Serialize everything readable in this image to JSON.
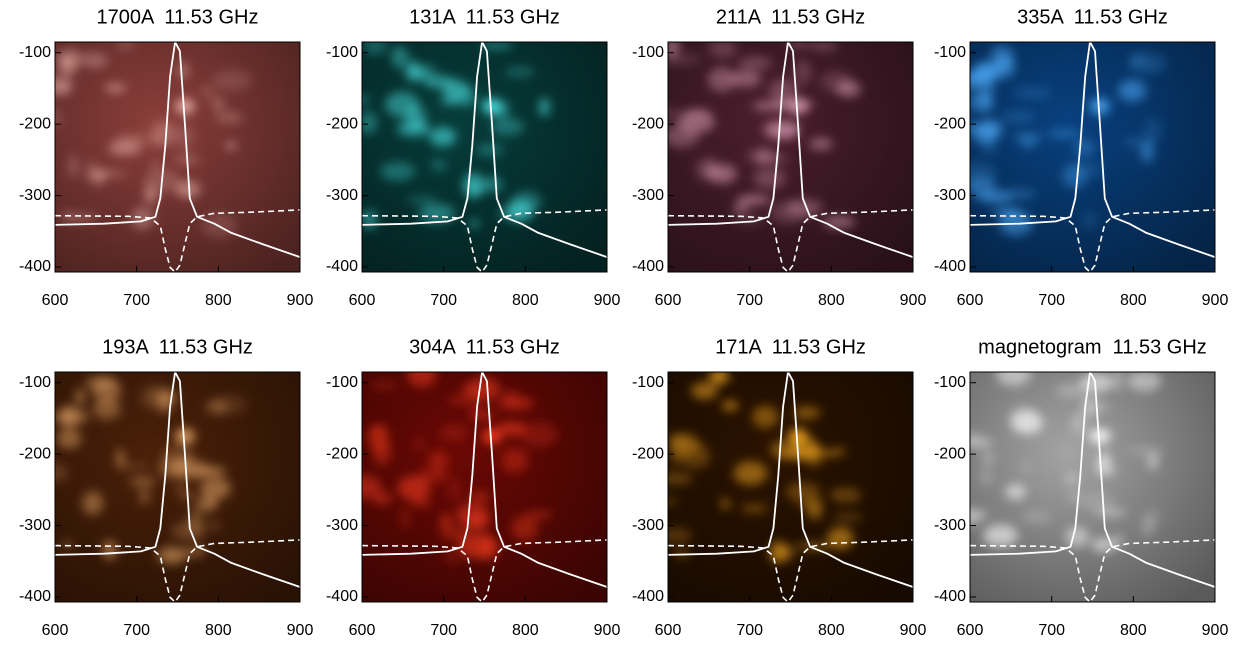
{
  "chart_data": [
    {
      "type": "image",
      "title": "1700A  11.53 GHz",
      "colors": [
        "#8a3e3a",
        "#f0b8b0"
      ],
      "xlim": [
        600,
        900
      ],
      "ylim": [
        -407,
        -85
      ],
      "xticks": [
        600,
        700,
        800,
        900
      ],
      "yticks": [
        -100,
        -200,
        -300,
        -400
      ]
    },
    {
      "type": "image",
      "title": "131A  11.53 GHz",
      "colors": [
        "#063c3a",
        "#50f0f0"
      ],
      "xlim": [
        600,
        900
      ],
      "ylim": [
        -407,
        -85
      ],
      "xticks": [
        600,
        700,
        800,
        900
      ],
      "yticks": [
        -100,
        -200,
        -300,
        -400
      ]
    },
    {
      "type": "image",
      "title": "211A  11.53 GHz",
      "colors": [
        "#4a1e2c",
        "#e0a0b8"
      ],
      "xlim": [
        600,
        900
      ],
      "ylim": [
        -407,
        -85
      ],
      "xticks": [
        600,
        700,
        800,
        900
      ],
      "yticks": [
        -100,
        -200,
        -300,
        -400
      ]
    },
    {
      "type": "image",
      "title": "335A  11.53 GHz",
      "colors": [
        "#08407e",
        "#50b0ff"
      ],
      "xlim": [
        600,
        900
      ],
      "ylim": [
        -407,
        -85
      ],
      "xticks": [
        600,
        700,
        800,
        900
      ],
      "yticks": [
        -100,
        -200,
        -300,
        -400
      ]
    },
    {
      "type": "image",
      "title": "193A  11.53 GHz",
      "colors": [
        "#4a2008",
        "#f0b070"
      ],
      "xlim": [
        600,
        900
      ],
      "ylim": [
        -407,
        -85
      ],
      "xticks": [
        600,
        700,
        800,
        900
      ],
      "yticks": [
        -100,
        -200,
        -300,
        -400
      ]
    },
    {
      "type": "image",
      "title": "304A  11.53 GHz",
      "colors": [
        "#6a0804",
        "#ff4020"
      ],
      "xlim": [
        600,
        900
      ],
      "ylim": [
        -407,
        -85
      ],
      "xticks": [
        600,
        700,
        800,
        900
      ],
      "yticks": [
        -100,
        -200,
        -300,
        -400
      ]
    },
    {
      "type": "image",
      "title": "171A  11.53 GHz",
      "colors": [
        "#2a1200",
        "#ffb020"
      ],
      "xlim": [
        600,
        900
      ],
      "ylim": [
        -407,
        -85
      ],
      "xticks": [
        600,
        700,
        800,
        900
      ],
      "yticks": [
        -100,
        -200,
        -300,
        -400
      ]
    },
    {
      "type": "image",
      "title": "magnetogram  11.53 GHz",
      "colors": [
        "#a4a4a4",
        "#ffffff"
      ],
      "xlim": [
        600,
        900
      ],
      "ylim": [
        -407,
        -85
      ],
      "xticks": [
        600,
        700,
        800,
        900
      ],
      "yticks": [
        -100,
        -200,
        -300,
        -400
      ]
    }
  ]
}
